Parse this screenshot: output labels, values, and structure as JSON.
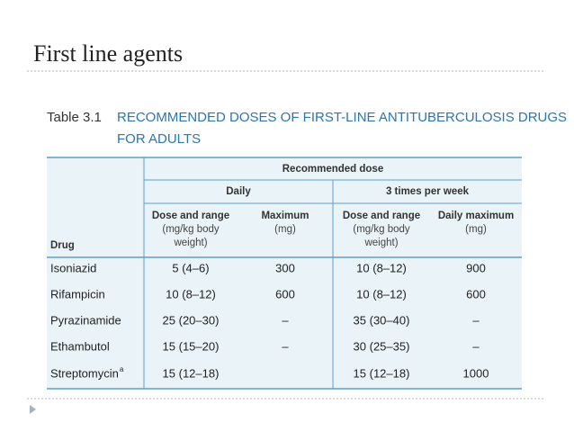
{
  "title": "First line agents",
  "table": {
    "label": "Table 3.1",
    "caption": [
      "RECOMMENDED DOSES OF FIRST-LINE ANTITUBERCULOSIS DRUGS",
      "FOR ADULTS"
    ],
    "group_header": "Recommended dose",
    "subgroups": [
      "Daily",
      "3 times per week"
    ],
    "columns": [
      [
        "Drug"
      ],
      [
        "Dose and range",
        "(mg/kg body",
        "weight)"
      ],
      [
        "Maximum",
        "(mg)"
      ],
      [
        "Dose and range",
        "(mg/kg body",
        "weight)"
      ],
      [
        "Daily maximum",
        "(mg)"
      ]
    ],
    "rows": [
      [
        "Isoniazid",
        "5 (4–6)",
        "300",
        "10 (8–12)",
        "900"
      ],
      [
        "Rifampicin",
        "10 (8–12)",
        "600",
        "10 (8–12)",
        "600"
      ],
      [
        "Pyrazinamide",
        "25 (20–30)",
        "–",
        "35 (30–40)",
        "–"
      ],
      [
        "Ethambutol",
        "15 (15–20)",
        "–",
        "30 (25–35)",
        "–"
      ],
      [
        "Streptomycin",
        "15 (12–18)",
        null,
        "15 (12–18)",
        "1000"
      ]
    ],
    "footnote_marker": "a"
  }
}
